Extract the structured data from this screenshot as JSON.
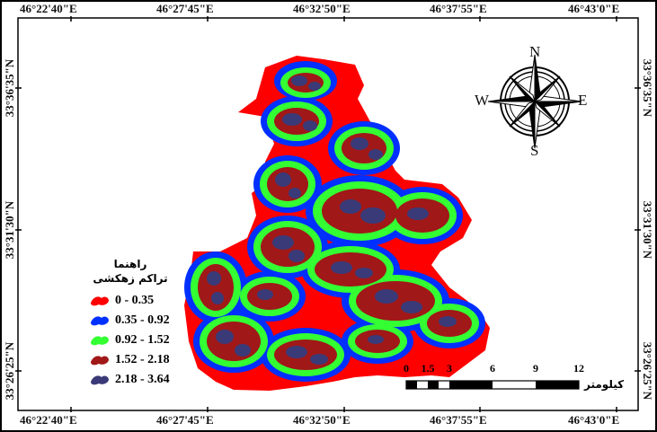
{
  "map": {
    "top_ticks": [
      "46°22'40\"E",
      "46°27'45\"E",
      "46°32'50\"E",
      "46°37'55\"E",
      "46°43'0\"E"
    ],
    "bottom_ticks": [
      "46°22'40\"E",
      "46°27'45\"E",
      "46°32'50\"E",
      "46°37'55\"E",
      "46°43'0\"E"
    ],
    "left_ticks": [
      "33°36'35\"N",
      "33°31'30\"N",
      "33°26'25\"N"
    ],
    "right_ticks": [
      "33°36'35\"N",
      "33°31'30\"N",
      "33°26'25\"N"
    ]
  },
  "legend": {
    "title_line1": "راهنما",
    "title_line2": "تراکم زهکشی",
    "classes": [
      {
        "label": "0 - 0.35",
        "color": "#ff0000"
      },
      {
        "label": "0.35 - 0.92",
        "color": "#0030ff"
      },
      {
        "label": "0.92 - 1.52",
        "color": "#33ff33"
      },
      {
        "label": "1.52 - 2.18",
        "color": "#a01818"
      },
      {
        "label": "2.18 - 3.64",
        "color": "#3a3a78"
      }
    ]
  },
  "scalebar": {
    "labels": [
      "0",
      "1.5",
      "3",
      "6",
      "9",
      "12"
    ],
    "unit": "کیلومتر"
  },
  "north_arrow": {
    "n": "N",
    "s": "S",
    "e": "E",
    "w": "W"
  }
}
